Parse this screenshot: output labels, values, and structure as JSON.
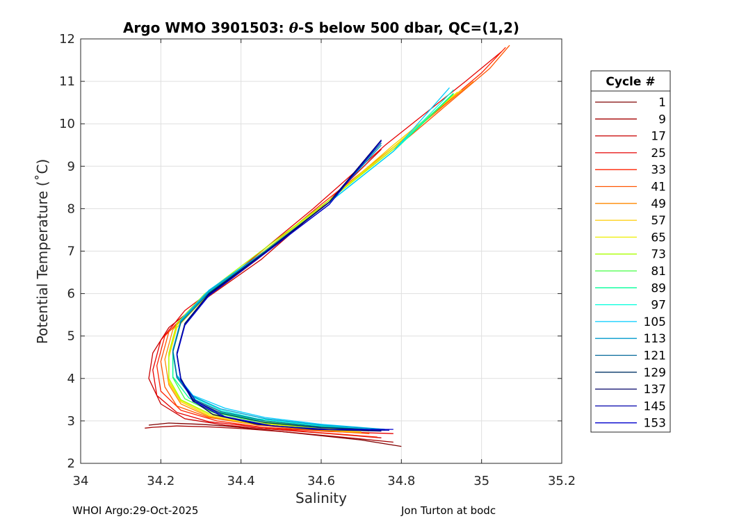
{
  "chart_data": {
    "type": "line",
    "title_pre": "Argo WMO 3901503: ",
    "title_theta": "θ",
    "title_post": "-S below 500 dbar,  QC=(1,2)",
    "xlabel": "Salinity",
    "ylabel": "Potential Temperature (˚C)",
    "xlim": [
      34,
      35.2
    ],
    "ylim": [
      2,
      12
    ],
    "xticks": [
      34,
      34.2,
      34.4,
      34.6,
      34.8,
      35,
      35.2
    ],
    "xtick_labels": [
      "34",
      "34.2",
      "34.4",
      "34.6",
      "34.8",
      "35",
      "35.2"
    ],
    "yticks": [
      2,
      3,
      4,
      5,
      6,
      7,
      8,
      9,
      10,
      11,
      12
    ],
    "ytick_labels": [
      "2",
      "3",
      "4",
      "5",
      "6",
      "7",
      "8",
      "9",
      "10",
      "11",
      "12"
    ],
    "grid": true,
    "legend_title": "Cycle #",
    "legend_position": "right",
    "series": [
      {
        "name": "1",
        "color": "#7f0000",
        "x": [
          34.8,
          34.7,
          34.55,
          34.45,
          34.36,
          34.3,
          34.22,
          34.17
        ],
        "y": [
          2.4,
          2.55,
          2.7,
          2.8,
          2.88,
          2.92,
          2.95,
          2.9
        ]
      },
      {
        "name": "9",
        "color": "#a50000",
        "x": [
          34.78,
          34.65,
          34.5,
          34.4,
          34.32,
          34.24,
          34.18,
          34.16
        ],
        "y": [
          2.5,
          2.62,
          2.75,
          2.82,
          2.86,
          2.88,
          2.85,
          2.83
        ]
      },
      {
        "name": "17",
        "color": "#c80000",
        "x": [
          34.75,
          34.62,
          34.48,
          34.36,
          34.26,
          34.2,
          34.17,
          34.18,
          34.22,
          34.3,
          34.45,
          34.62,
          34.75
        ],
        "y": [
          2.6,
          2.7,
          2.8,
          2.9,
          3.05,
          3.4,
          4.0,
          4.6,
          5.2,
          5.8,
          6.8,
          8.2,
          9.4
        ]
      },
      {
        "name": "25",
        "color": "#e60000",
        "x": [
          34.78,
          34.62,
          34.45,
          34.32,
          34.24,
          34.19,
          34.18,
          34.2,
          34.26,
          34.4,
          34.58,
          34.76,
          34.96,
          35.05
        ],
        "y": [
          2.7,
          2.75,
          2.85,
          2.98,
          3.2,
          3.6,
          4.2,
          4.9,
          5.6,
          6.6,
          8.0,
          9.5,
          11.0,
          11.7
        ]
      },
      {
        "name": "33",
        "color": "#ff2200",
        "x": [
          34.74,
          34.6,
          34.46,
          34.34,
          34.25,
          34.2,
          34.19,
          34.21,
          34.28,
          34.42,
          34.6,
          34.8,
          35.0,
          35.06
        ],
        "y": [
          2.62,
          2.72,
          2.84,
          3.0,
          3.25,
          3.7,
          4.3,
          5.0,
          5.7,
          6.7,
          8.1,
          9.6,
          11.2,
          11.8
        ]
      },
      {
        "name": "41",
        "color": "#ff5500",
        "x": [
          34.72,
          34.58,
          34.44,
          34.32,
          34.24,
          34.21,
          34.2,
          34.22,
          34.3,
          34.44,
          34.62,
          34.82,
          35.02,
          35.07
        ],
        "y": [
          2.7,
          2.78,
          2.9,
          3.08,
          3.35,
          3.8,
          4.4,
          5.1,
          5.8,
          6.8,
          8.2,
          9.7,
          11.3,
          11.85
        ]
      },
      {
        "name": "49",
        "color": "#ff8800",
        "x": [
          34.7,
          34.56,
          34.43,
          34.32,
          34.25,
          34.22,
          34.21,
          34.23,
          34.3,
          34.44,
          34.62,
          34.8,
          34.98
        ],
        "y": [
          2.72,
          2.8,
          2.92,
          3.1,
          3.4,
          3.85,
          4.45,
          5.15,
          5.85,
          6.85,
          8.2,
          9.6,
          11.0
        ]
      },
      {
        "name": "57",
        "color": "#ffcc00",
        "x": [
          34.7,
          34.55,
          34.42,
          34.32,
          34.25,
          34.22,
          34.22,
          34.24,
          34.31,
          34.45,
          34.62,
          34.78,
          34.95
        ],
        "y": [
          2.74,
          2.82,
          2.94,
          3.12,
          3.45,
          3.9,
          4.5,
          5.2,
          5.9,
          6.9,
          8.2,
          9.5,
          10.8
        ]
      },
      {
        "name": "65",
        "color": "#eeee00",
        "x": [
          34.72,
          34.56,
          34.42,
          34.32,
          34.25,
          34.22,
          34.22,
          34.24,
          34.31,
          34.45,
          34.62,
          34.78,
          34.94
        ],
        "y": [
          2.76,
          2.84,
          2.96,
          3.15,
          3.48,
          3.95,
          4.55,
          5.25,
          5.95,
          6.95,
          8.2,
          9.45,
          10.75
        ]
      },
      {
        "name": "73",
        "color": "#aaff00",
        "x": [
          34.72,
          34.56,
          34.42,
          34.32,
          34.25,
          34.22,
          34.22,
          34.24,
          34.31,
          34.45,
          34.62,
          34.78,
          34.93
        ],
        "y": [
          2.78,
          2.86,
          2.98,
          3.18,
          3.5,
          4.0,
          4.6,
          5.3,
          6.0,
          7.0,
          8.2,
          9.4,
          10.7
        ]
      },
      {
        "name": "81",
        "color": "#44ff44",
        "x": [
          34.73,
          34.57,
          34.43,
          34.33,
          34.26,
          34.23,
          34.23,
          34.25,
          34.32,
          34.46,
          34.62,
          34.78,
          34.93
        ],
        "y": [
          2.78,
          2.88,
          3.0,
          3.2,
          3.52,
          4.02,
          4.62,
          5.32,
          6.02,
          7.0,
          8.15,
          9.35,
          10.7
        ]
      },
      {
        "name": "89",
        "color": "#00ff99",
        "x": [
          34.74,
          34.58,
          34.44,
          34.34,
          34.27,
          34.23,
          34.23,
          34.25,
          34.32,
          34.46,
          34.62,
          34.78,
          34.93
        ],
        "y": [
          2.78,
          2.88,
          3.02,
          3.22,
          3.54,
          4.04,
          4.64,
          5.34,
          6.04,
          7.0,
          8.15,
          9.35,
          10.72
        ]
      },
      {
        "name": "97",
        "color": "#00ffdd",
        "x": [
          34.75,
          34.58,
          34.44,
          34.35,
          34.28,
          34.24,
          34.23,
          34.25,
          34.32,
          34.46,
          34.62,
          34.78,
          34.93
        ],
        "y": [
          2.78,
          2.9,
          3.05,
          3.25,
          3.56,
          4.05,
          4.65,
          5.35,
          6.05,
          7.0,
          8.15,
          9.35,
          10.8
        ]
      },
      {
        "name": "105",
        "color": "#00ccff",
        "x": [
          34.76,
          34.6,
          34.46,
          34.36,
          34.28,
          34.24,
          34.23,
          34.25,
          34.32,
          34.46,
          34.62,
          34.78,
          34.92
        ],
        "y": [
          2.8,
          2.92,
          3.08,
          3.3,
          3.6,
          4.08,
          4.68,
          5.38,
          6.08,
          7.0,
          8.15,
          9.35,
          10.85
        ]
      },
      {
        "name": "113",
        "color": "#0099cc",
        "x": [
          34.76,
          34.6,
          34.46,
          34.35,
          34.28,
          34.24,
          34.23,
          34.25,
          34.32,
          34.46,
          34.62,
          34.75
        ],
        "y": [
          2.8,
          2.9,
          3.05,
          3.28,
          3.58,
          4.06,
          4.66,
          5.36,
          6.06,
          7.0,
          8.15,
          9.5
        ]
      },
      {
        "name": "121",
        "color": "#006699",
        "x": [
          34.76,
          34.6,
          34.46,
          34.35,
          34.28,
          34.24,
          34.23,
          34.25,
          34.32,
          34.46,
          34.62,
          34.75
        ],
        "y": [
          2.78,
          2.86,
          3.0,
          3.22,
          3.52,
          4.02,
          4.62,
          5.32,
          6.02,
          6.98,
          8.15,
          9.55
        ]
      },
      {
        "name": "129",
        "color": "#003366",
        "x": [
          34.76,
          34.6,
          34.46,
          34.35,
          34.28,
          34.25,
          34.24,
          34.26,
          34.32,
          34.46,
          34.62,
          34.75
        ],
        "y": [
          2.78,
          2.84,
          2.96,
          3.18,
          3.5,
          4.0,
          4.6,
          5.3,
          6.0,
          6.98,
          8.15,
          9.6
        ]
      },
      {
        "name": "137",
        "color": "#000066",
        "x": [
          34.75,
          34.58,
          34.44,
          34.33,
          34.28,
          34.25,
          34.24,
          34.26,
          34.32,
          34.46,
          34.62,
          34.75
        ],
        "y": [
          2.76,
          2.8,
          2.92,
          3.15,
          3.48,
          3.98,
          4.58,
          5.28,
          5.98,
          6.96,
          8.15,
          9.62
        ]
      },
      {
        "name": "145",
        "color": "#0000aa",
        "x": [
          34.77,
          34.6,
          34.46,
          34.35,
          34.28,
          34.25,
          34.24,
          34.26,
          34.32,
          34.46,
          34.62,
          34.75
        ],
        "y": [
          2.78,
          2.8,
          2.9,
          3.12,
          3.46,
          3.96,
          4.56,
          5.26,
          5.96,
          6.95,
          8.1,
          9.6
        ]
      },
      {
        "name": "153",
        "color": "#0000cc",
        "x": [
          34.78,
          34.62,
          34.48,
          34.36,
          34.29,
          34.25,
          34.24,
          34.26,
          34.32,
          34.46,
          34.62,
          34.75
        ],
        "y": [
          2.8,
          2.8,
          2.88,
          3.1,
          3.44,
          3.95,
          4.55,
          5.25,
          5.95,
          6.95,
          8.1,
          9.6
        ]
      }
    ]
  },
  "footer": {
    "left": "WHOI Argo:29-Oct-2025",
    "right": "Jon Turton at bodc"
  }
}
